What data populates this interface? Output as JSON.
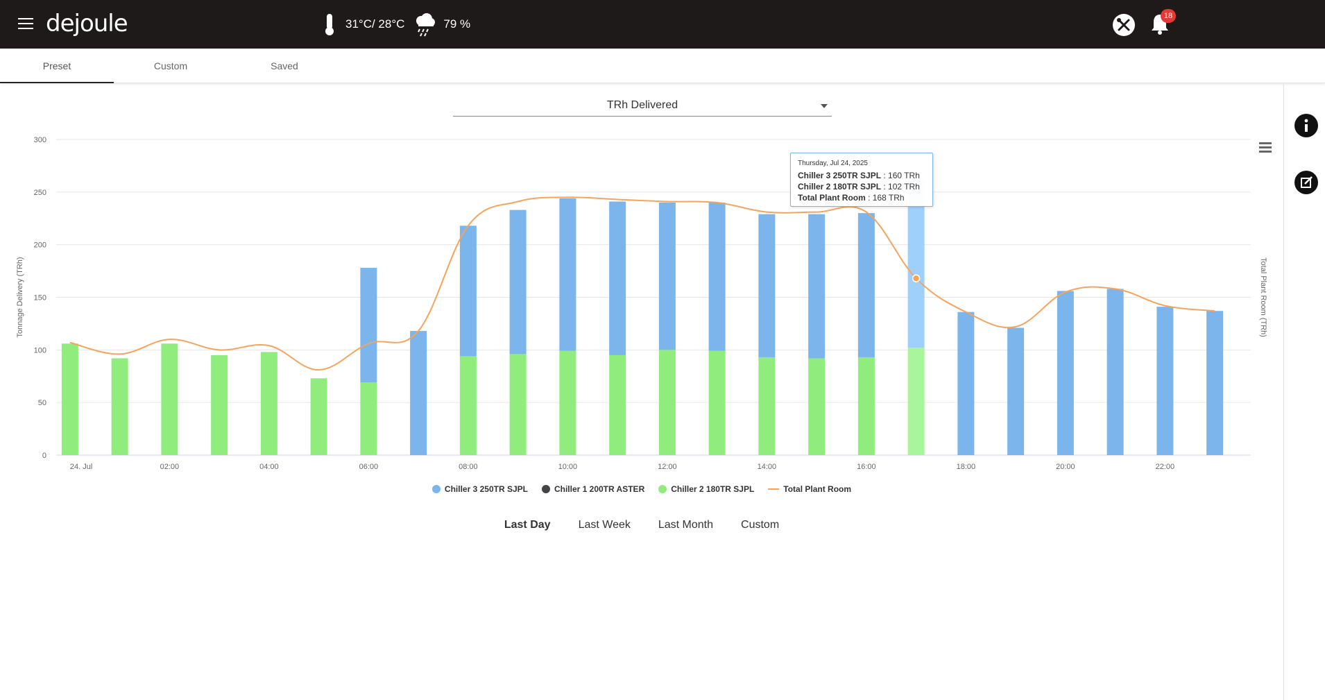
{
  "header": {
    "logo": "dejoule",
    "temperature": "31°C/ 28°C",
    "humidity": "79 %",
    "notification_count": "18"
  },
  "tabs": [
    "Preset",
    "Custom",
    "Saved"
  ],
  "metric_select": {
    "value": "TRh Delivered"
  },
  "tooltip": {
    "date": "Thursday, Jul 24, 2025",
    "rows": [
      {
        "name": "Chiller 3 250TR SJPL",
        "value": ": 160 TRh"
      },
      {
        "name": "Chiller 2 180TR SJPL",
        "value": ": 102 TRh"
      },
      {
        "name": "Total Plant Room",
        "value": ": 168 TRh"
      }
    ]
  },
  "time_ranges": [
    "Last Day",
    "Last Week",
    "Last Month",
    "Custom"
  ],
  "selected_range": "Last Day",
  "colors": {
    "chiller3": "#7cb5ec",
    "chiller1": "#434348",
    "chiller2": "#90ed7d",
    "total": "#f7a35c"
  },
  "chart_data": {
    "type": "bar",
    "stacked": true,
    "x": [
      "00:00",
      "01:00",
      "02:00",
      "03:00",
      "04:00",
      "05:00",
      "06:00",
      "07:00",
      "08:00",
      "09:00",
      "10:00",
      "11:00",
      "12:00",
      "13:00",
      "14:00",
      "15:00",
      "16:00",
      "17:00",
      "18:00",
      "19:00",
      "20:00",
      "21:00",
      "22:00",
      "23:00"
    ],
    "x_tick_labels": [
      "24. Jul",
      "02:00",
      "04:00",
      "06:00",
      "08:00",
      "10:00",
      "12:00",
      "14:00",
      "16:00",
      "18:00",
      "20:00",
      "22:00"
    ],
    "ylabel": "Tonnage Delivery (TRh)",
    "y2label": "Total Plant Room (TRh)",
    "ylim": [
      0,
      300
    ],
    "yticks": [
      0,
      50,
      100,
      150,
      200,
      250,
      300
    ],
    "grid": true,
    "legend_position": "bottom",
    "series": [
      {
        "name": "Chiller 2 180TR SJPL",
        "color_key": "chiller2",
        "values": [
          106,
          92,
          106,
          95,
          98,
          73,
          69,
          0,
          94,
          96,
          99,
          95,
          100,
          99,
          93,
          92,
          93,
          102,
          0,
          0,
          0,
          0,
          0,
          0
        ]
      },
      {
        "name": "Chiller 3 250TR SJPL",
        "color_key": "chiller3",
        "values": [
          0,
          0,
          0,
          0,
          0,
          0,
          109,
          118,
          124,
          137,
          145,
          146,
          140,
          141,
          136,
          137,
          137,
          160,
          136,
          121,
          156,
          158,
          141,
          137
        ]
      },
      {
        "name": "Chiller 1 200TR ASTER",
        "color_key": "chiller1",
        "values": [
          0,
          0,
          0,
          0,
          0,
          0,
          0,
          0,
          0,
          0,
          0,
          0,
          0,
          0,
          0,
          0,
          0,
          0,
          0,
          0,
          0,
          0,
          0,
          0
        ]
      },
      {
        "name": "Total Plant Room",
        "type": "line",
        "color_key": "total",
        "values": [
          107,
          96,
          110,
          100,
          104,
          81,
          106,
          118,
          218,
          241,
          245,
          243,
          241,
          240,
          231,
          231,
          231,
          168,
          136,
          122,
          155,
          158,
          142,
          137
        ]
      }
    ],
    "legend_order": [
      "Chiller 3 250TR SJPL",
      "Chiller 1 200TR ASTER",
      "Chiller 2 180TR SJPL",
      "Total Plant Room"
    ]
  }
}
